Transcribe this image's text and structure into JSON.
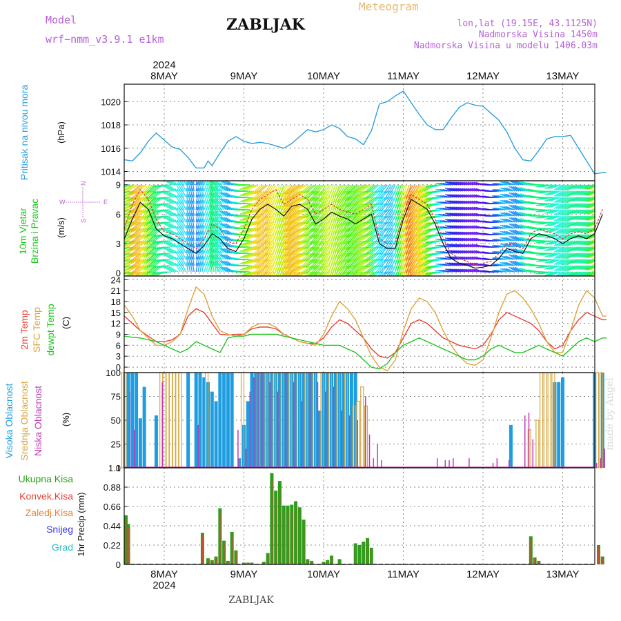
{
  "header": {
    "model_label": "Model",
    "model_name": "wrf−nmm_v3.9.1 e1km",
    "station": "ZABLJAK",
    "meteogram_label": "Meteogram",
    "lonlat": "lon,lat (19.15E, 43.1125N)",
    "altitude": "Nadmorska Visina 1450m",
    "model_altitude": "Nadmorska Visina u modelu 1406.03m",
    "footer_station": "ZABLJAK",
    "credit": "made by Angel"
  },
  "colors": {
    "model": "#b65fd6",
    "meteogram": "#e8b870",
    "info": "#b65fd6",
    "pressure": "#2a9fe0",
    "wind_label": "#19c919",
    "temp2m": "#e8403a",
    "sfc": "#e0a23a",
    "dewpt": "#1fc41f",
    "high_cloud": "#1e9ee0",
    "mid_cloud": "#d8a640",
    "low_cloud": "#c03ab8",
    "total_precip": "#2aa01a",
    "conv_precip": "#e8403a",
    "snow": "#3838e0",
    "graupel": "#2ac0c0",
    "freezing": "#ee8030"
  },
  "time_axis": {
    "year": "2024",
    "days": [
      "8MAY",
      "9MAY",
      "10MAY",
      "11MAY",
      "12MAY",
      "13MAY"
    ],
    "start_day_offset": -0.5,
    "end_day_offset": 5.55
  },
  "chart_data": [
    {
      "type": "line",
      "name": "pressure",
      "ylabel_left": "Pritisak na nivou mora",
      "unit": "(hPa)",
      "ylim": [
        1013.2,
        1021.5
      ],
      "yticks": [
        1014,
        1016,
        1018,
        1020
      ],
      "x": [
        -0.5,
        -0.4,
        -0.3,
        -0.2,
        -0.1,
        0,
        0.1,
        0.2,
        0.3,
        0.4,
        0.5,
        0.55,
        0.6,
        0.7,
        0.8,
        0.9,
        1.0,
        1.1,
        1.2,
        1.3,
        1.4,
        1.5,
        1.6,
        1.7,
        1.8,
        1.9,
        2.0,
        2.1,
        2.2,
        2.3,
        2.4,
        2.5,
        2.6,
        2.7,
        2.8,
        2.9,
        3.0,
        3.1,
        3.2,
        3.3,
        3.4,
        3.5,
        3.6,
        3.7,
        3.8,
        3.9,
        4.0,
        4.1,
        4.2,
        4.3,
        4.4,
        4.5,
        4.6,
        4.7,
        4.8,
        4.9,
        5.0,
        5.1,
        5.2,
        5.3,
        5.4,
        5.5,
        5.55
      ],
      "y": [
        1015.0,
        1014.9,
        1015.6,
        1016.6,
        1017.3,
        1016.7,
        1016.1,
        1015.9,
        1015.2,
        1014.3,
        1014.3,
        1014.9,
        1014.5,
        1015.6,
        1016.6,
        1017.0,
        1016.6,
        1016.4,
        1016.5,
        1016.4,
        1016.2,
        1016.0,
        1016.4,
        1017.0,
        1017.6,
        1017.4,
        1017.6,
        1018.0,
        1017.7,
        1017.0,
        1016.8,
        1016.3,
        1017.5,
        1019.8,
        1020.0,
        1020.5,
        1020.9,
        1019.9,
        1018.9,
        1018.0,
        1017.6,
        1017.6,
        1018.6,
        1019.5,
        1019.9,
        1019.7,
        1019.6,
        1019.0,
        1018.4,
        1017.4,
        1016.0,
        1015.0,
        1014.9,
        1015.8,
        1016.8,
        1017.0,
        1017.0,
        1017.1,
        1016.0,
        1014.9,
        1013.8,
        1013.9,
        1013.9
      ]
    },
    {
      "type": "line",
      "name": "wind",
      "ylabel_left": "10m Vjetar Brzina i Pravac",
      "unit": "(m/s)",
      "compass": {
        "n": "N",
        "s": "S",
        "w": "W",
        "e": "E"
      },
      "ylim": [
        -0.3,
        9.4
      ],
      "yticks": [
        0,
        3,
        6,
        9
      ],
      "x": [
        -0.5,
        -0.4,
        -0.3,
        -0.2,
        -0.1,
        0,
        0.1,
        0.2,
        0.3,
        0.4,
        0.5,
        0.6,
        0.7,
        0.8,
        0.9,
        1.0,
        1.1,
        1.2,
        1.3,
        1.4,
        1.5,
        1.6,
        1.7,
        1.8,
        1.9,
        2.0,
        2.1,
        2.2,
        2.3,
        2.4,
        2.5,
        2.6,
        2.7,
        2.8,
        2.9,
        3.0,
        3.1,
        3.2,
        3.3,
        3.4,
        3.5,
        3.6,
        3.7,
        3.8,
        3.9,
        4.0,
        4.1,
        4.2,
        4.3,
        4.4,
        4.5,
        4.6,
        4.7,
        4.8,
        4.9,
        5.0,
        5.1,
        5.2,
        5.3,
        5.4,
        5.5
      ],
      "speed": [
        3.5,
        5.5,
        7.2,
        6.5,
        4.5,
        3.8,
        3.5,
        3.0,
        2.5,
        2.0,
        2.8,
        4.0,
        3.5,
        2.5,
        2.2,
        3.5,
        5.5,
        6.5,
        7.0,
        6.5,
        5.8,
        6.8,
        7.0,
        6.5,
        5.0,
        5.5,
        6.2,
        5.8,
        5.5,
        5.0,
        5.5,
        6.0,
        3.0,
        2.5,
        2.5,
        5.5,
        7.5,
        7.0,
        6.5,
        5.0,
        3.0,
        1.5,
        1.0,
        0.8,
        0.5,
        0.6,
        0.8,
        1.5,
        2.5,
        2.2,
        2.0,
        3.5,
        4.0,
        3.8,
        3.5,
        3.0,
        3.5,
        3.8,
        3.5,
        4.0,
        6.0
      ],
      "gust": [
        4.5,
        7.0,
        8.5,
        7.5,
        5.5,
        4.2,
        4.0,
        3.5,
        3.0,
        2.5,
        3.5,
        5.0,
        4.5,
        3.2,
        3.0,
        4.5,
        6.5,
        7.5,
        8.0,
        8.5,
        7.0,
        7.5,
        8.0,
        7.5,
        6.0,
        6.5,
        7.0,
        6.5,
        6.2,
        6.0,
        6.5,
        7.0,
        3.5,
        3.0,
        3.0,
        6.0,
        8.0,
        7.5,
        7.0,
        5.5,
        3.5,
        2.0,
        1.5,
        1.2,
        0.8,
        1.0,
        1.2,
        2.0,
        3.0,
        2.8,
        2.5,
        4.0,
        4.5,
        4.2,
        4.0,
        3.5,
        4.0,
        4.2,
        4.0,
        4.5,
        6.5
      ],
      "dir_deg": [
        250,
        240,
        230,
        220,
        230,
        260,
        300,
        330,
        350,
        10,
        20,
        350,
        320,
        300,
        280,
        270,
        250,
        230,
        210,
        200,
        210,
        230,
        240,
        230,
        220,
        210,
        200,
        210,
        220,
        230,
        240,
        230,
        220,
        210,
        200,
        200,
        210,
        220,
        240,
        260,
        280,
        290,
        290,
        290,
        290,
        280,
        270,
        280,
        290,
        300,
        290,
        280,
        270,
        260,
        250,
        240,
        240,
        250,
        250,
        250,
        240
      ]
    },
    {
      "type": "line",
      "name": "temperature",
      "ylabel_left": [
        "2m Temp",
        "SFC Temp",
        "dewpt Temp"
      ],
      "unit": "(C)",
      "ylim": [
        -1.5,
        25
      ],
      "yticks": [
        0,
        3,
        6,
        9,
        12,
        15,
        18,
        21,
        24
      ],
      "x": [
        -0.5,
        -0.4,
        -0.3,
        -0.2,
        -0.1,
        0,
        0.1,
        0.2,
        0.3,
        0.4,
        0.5,
        0.6,
        0.7,
        0.8,
        0.9,
        1.0,
        1.1,
        1.2,
        1.3,
        1.4,
        1.5,
        1.6,
        1.7,
        1.8,
        1.9,
        2.0,
        2.1,
        2.2,
        2.3,
        2.4,
        2.5,
        2.6,
        2.7,
        2.8,
        2.9,
        3.0,
        3.1,
        3.2,
        3.3,
        3.4,
        3.5,
        3.6,
        3.7,
        3.8,
        3.9,
        4.0,
        4.1,
        4.2,
        4.3,
        4.4,
        4.5,
        4.6,
        4.7,
        4.8,
        4.9,
        5.0,
        5.1,
        5.2,
        5.3,
        5.4,
        5.5,
        5.55
      ],
      "series": [
        {
          "name": "2m Temp",
          "values": [
            14,
            12,
            10,
            8.5,
            7,
            7,
            7.5,
            9,
            14,
            16,
            15,
            12,
            9,
            8.8,
            9,
            9,
            10.5,
            11,
            11,
            10.5,
            9,
            8,
            7,
            6.5,
            6.5,
            8,
            11,
            13,
            12,
            10,
            8,
            5,
            3,
            2.5,
            4,
            8,
            12,
            13,
            12,
            10,
            8,
            7,
            6,
            5.5,
            5,
            6,
            9,
            13,
            15,
            14,
            13,
            12,
            10,
            7,
            5,
            6,
            10,
            13,
            15,
            14,
            13,
            13
          ]
        },
        {
          "name": "SFC Temp",
          "values": [
            17,
            14,
            10,
            8,
            6,
            6,
            7,
            9,
            16,
            22,
            20,
            14,
            10,
            9,
            8.5,
            9,
            11,
            12,
            12,
            11,
            9,
            8,
            7,
            6.5,
            6,
            9,
            14,
            18,
            16,
            13,
            8,
            3,
            0,
            -1,
            2,
            10,
            16,
            19,
            18,
            15,
            10,
            6,
            3,
            1,
            0.5,
            2,
            8,
            15,
            20,
            21,
            19,
            16,
            12,
            7,
            4,
            4,
            10,
            17,
            21,
            19,
            14,
            14
          ]
        },
        {
          "name": "dewpt Temp",
          "values": [
            8.5,
            8.2,
            8,
            7.5,
            7,
            6,
            5,
            4,
            5,
            7,
            6,
            5,
            4,
            8,
            8.5,
            8.5,
            9,
            9,
            9,
            9,
            8.5,
            8,
            7.5,
            7,
            6.5,
            6,
            6,
            6,
            5,
            4,
            2,
            0,
            -0.5,
            1,
            4,
            6,
            7,
            8,
            7,
            6,
            5,
            4,
            3,
            2,
            2,
            3,
            5,
            6,
            5,
            4,
            4,
            5,
            6,
            5,
            4,
            3,
            5,
            7,
            8,
            7,
            8,
            8
          ]
        }
      ]
    },
    {
      "type": "bar",
      "name": "clouds",
      "ylabel_left": [
        "Visoka Oblacnost",
        "Srednja Oblacnost",
        "Niska Oblacnost"
      ],
      "unit": "(%)",
      "ylim": [
        0,
        100
      ],
      "yticks": [
        0,
        25,
        50,
        75,
        100
      ],
      "series": [
        {
          "name": "Visoka Oblacnost",
          "x": [
            -0.45,
            -0.4,
            -0.35,
            -0.3,
            -0.25,
            -0.1,
            0.3,
            0.4,
            0.45,
            0.5,
            0.55,
            0.6,
            0.65,
            0.7,
            0.75,
            0.8,
            0.85,
            0.95,
            1.0,
            1.05,
            1.1,
            1.15,
            1.2,
            1.25,
            1.3,
            1.35,
            1.4,
            1.45,
            1.5,
            1.55,
            1.6,
            1.65,
            1.7,
            1.75,
            1.8,
            1.85,
            1.9,
            1.95,
            2.0,
            2.05,
            2.1,
            2.15,
            2.2,
            2.25,
            2.3,
            2.35,
            2.4,
            4.35,
            4.9,
            4.95,
            5.0,
            5.4,
            5.5
          ],
          "values": [
            100,
            100,
            100,
            52,
            85,
            55,
            100,
            100,
            100,
            95,
            90,
            80,
            70,
            100,
            100,
            100,
            100,
            10,
            45,
            70,
            100,
            100,
            100,
            100,
            100,
            100,
            100,
            100,
            100,
            100,
            100,
            100,
            100,
            100,
            100,
            100,
            100,
            60,
            100,
            100,
            100,
            100,
            100,
            100,
            100,
            100,
            100,
            45,
            90,
            90,
            95,
            100,
            100
          ]
        },
        {
          "name": "Srednja Oblacnost",
          "x": [
            -0.5,
            -0.48,
            -0.02,
            0.02,
            0.06,
            0.1,
            0.14,
            0.18,
            0.22,
            0.55,
            1.0,
            1.2,
            1.3,
            1.4,
            1.5,
            1.6,
            1.7,
            1.8,
            1.9,
            2.0,
            2.1,
            2.2,
            2.3,
            2.4,
            2.45,
            2.5,
            2.55,
            4.6,
            4.7,
            4.75,
            4.8,
            4.85,
            4.9,
            5.45,
            5.5
          ],
          "values": [
            100,
            100,
            100,
            100,
            100,
            100,
            100,
            100,
            100,
            100,
            100,
            100,
            100,
            100,
            100,
            100,
            100,
            100,
            100,
            100,
            100,
            100,
            100,
            65,
            70,
            85,
            65,
            40,
            50,
            100,
            100,
            100,
            100,
            100,
            100
          ]
        },
        {
          "name": "Niska Oblacnost",
          "x": [
            -0.46,
            -0.4,
            -0.05,
            0.4,
            0.9,
            1.0,
            1.05,
            1.1,
            1.15,
            1.2,
            1.3,
            1.4,
            1.5,
            1.6,
            1.7,
            1.8,
            1.9,
            2.0,
            2.1,
            2.2,
            2.3,
            2.4,
            2.5,
            2.55,
            2.6,
            2.65,
            2.7,
            3.4,
            3.5,
            3.55,
            3.6,
            3.8,
            4.1,
            4.15,
            4.3,
            4.5,
            4.55,
            4.6,
            5.4,
            5.45,
            5.5
          ],
          "values": [
            80,
            40,
            90,
            45,
            40,
            20,
            80,
            95,
            100,
            100,
            90,
            80,
            100,
            90,
            70,
            100,
            90,
            80,
            85,
            60,
            55,
            50,
            75,
            35,
            10,
            25,
            8,
            10,
            8,
            8,
            10,
            10,
            5,
            10,
            8,
            55,
            58,
            30,
            5,
            10,
            20
          ]
        }
      ]
    },
    {
      "type": "bar",
      "name": "precipitation",
      "ylabel_left": [
        "Ukupna Kisa",
        "Konvek.Kisa",
        "Zaledj.Kisa",
        "Snijeg",
        "Grad"
      ],
      "unit": "1hr Precip (mm)",
      "ylim": [
        0,
        1.1
      ],
      "yticks": [
        0,
        0.22,
        0.44,
        0.66,
        0.88,
        1.1
      ],
      "x": [
        -0.48,
        -0.45,
        0.48,
        0.55,
        0.6,
        0.65,
        0.7,
        0.75,
        0.8,
        0.85,
        0.9,
        1.0,
        1.05,
        1.1,
        1.25,
        1.3,
        1.35,
        1.4,
        1.45,
        1.5,
        1.55,
        1.6,
        1.65,
        1.7,
        1.75,
        1.8,
        1.85,
        2.0,
        2.05,
        2.1,
        2.2,
        2.4,
        2.45,
        2.5,
        2.55,
        2.6,
        4.6,
        4.65,
        4.7,
        5.45,
        5.5
      ],
      "values": [
        0.56,
        0.46,
        0.36,
        0.07,
        0.05,
        0.09,
        0.64,
        0.27,
        0.04,
        0.37,
        0.16,
        0.02,
        0.02,
        0.02,
        0.03,
        0.13,
        1.04,
        0.84,
        0.95,
        0.67,
        0.67,
        0.68,
        0.72,
        0.65,
        0.51,
        0.06,
        0.04,
        0.03,
        0.05,
        0.1,
        0.06,
        0.24,
        0.22,
        0.26,
        0.3,
        0.19,
        0.32,
        0.08,
        0.04,
        0.22,
        0.09
      ]
    }
  ]
}
